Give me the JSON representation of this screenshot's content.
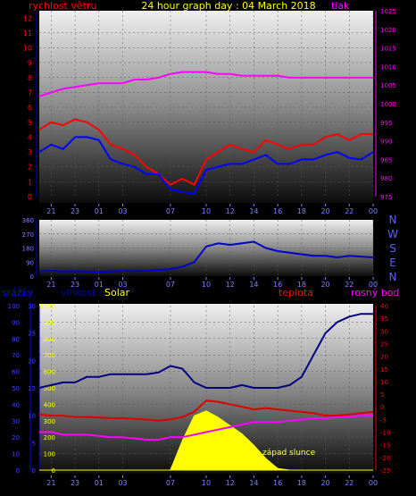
{
  "header": {
    "title": "24 hour graph day : 04 March 2018",
    "left_label": "rychlost větru",
    "right_label": "tlak"
  },
  "colors": {
    "wind": "#ff0000",
    "gust_avg": "#0000ff",
    "pressure": "#ff00ff",
    "direction": "#0000cc",
    "humidity": "#000080",
    "temperature": "#dd0000",
    "dewpoint": "#ff00ff",
    "solar": "#ffff00",
    "title": "#ffff00"
  },
  "x_ticks": [
    "21",
    "23",
    "01",
    "03",
    "07",
    "10",
    "12",
    "14",
    "16",
    "18",
    "20",
    "22",
    "00"
  ],
  "compass": [
    "N",
    "W",
    "S",
    "E",
    "N"
  ],
  "bottom_labels": {
    "rain": "srážky",
    "humidity": "vlhkost",
    "solar": "Solar",
    "temperature": "teplota",
    "dewpoint": "rosný bod",
    "sunset": "západ slunce"
  },
  "chart_data": [
    {
      "type": "line",
      "title": "24 hour graph day : 04 March 2018",
      "x": [
        "20",
        "21",
        "22",
        "23",
        "00",
        "01",
        "02",
        "03",
        "04",
        "05",
        "06",
        "07",
        "08",
        "09",
        "10",
        "11",
        "12",
        "13",
        "14",
        "15",
        "16",
        "17",
        "18",
        "19",
        "20",
        "21",
        "22",
        "23",
        "00"
      ],
      "ylabel_left": "rychlost větru",
      "ylabel_right": "tlak",
      "left_ticks": [
        "0",
        "1",
        "2",
        "3",
        "4",
        "5",
        "6",
        "7",
        "8",
        "9",
        "10",
        "11",
        "12"
      ],
      "right_ticks": [
        "975",
        "980",
        "985",
        "990",
        "995",
        "1000",
        "1005",
        "1010",
        "1015",
        "1020",
        "1025"
      ],
      "ylim_left": [
        0,
        12.5
      ],
      "ylim_right": [
        975,
        1025
      ],
      "series": [
        {
          "axis": "left",
          "values": [
            4.5,
            5,
            4.8,
            5.2,
            5,
            4.5,
            3.5,
            3.2,
            2.8,
            2,
            1.5,
            0.8,
            1.2,
            0.8,
            2.5,
            3,
            3.5,
            3.2,
            3,
            3.8,
            3.5,
            3.2,
            3.5,
            3.5,
            4,
            4.2,
            3.8,
            4.2,
            4.2
          ]
        },
        {
          "axis": "left",
          "values": [
            3,
            3.5,
            3.2,
            4,
            4,
            3.8,
            2.5,
            2.2,
            2,
            1.5,
            1.5,
            0.5,
            0.3,
            0.2,
            1.8,
            2,
            2.2,
            2.2,
            2.5,
            2.8,
            2.2,
            2.2,
            2.5,
            2.5,
            2.8,
            3,
            2.6,
            2.5,
            3
          ]
        },
        {
          "axis": "right",
          "values": [
            1002,
            1003,
            1004,
            1004.5,
            1005,
            1005.5,
            1005.5,
            1005.5,
            1006.5,
            1006.5,
            1007,
            1008,
            1008.5,
            1008.5,
            1008.5,
            1008,
            1008,
            1007.5,
            1007.5,
            1007.5,
            1007.5,
            1007,
            1007,
            1007,
            1007,
            1007,
            1007,
            1007,
            1007
          ]
        }
      ]
    },
    {
      "type": "line",
      "x": [
        "20",
        "21",
        "22",
        "23",
        "00",
        "01",
        "02",
        "03",
        "04",
        "05",
        "06",
        "07",
        "08",
        "09",
        "10",
        "11",
        "12",
        "13",
        "14",
        "15",
        "16",
        "17",
        "18",
        "19",
        "20",
        "21",
        "22",
        "23",
        "00"
      ],
      "left_ticks": [
        "0",
        "90",
        "180",
        "270",
        "360"
      ],
      "ylim": [
        0,
        360
      ],
      "series": [
        {
          "values": [
            30,
            35,
            30,
            32,
            30,
            25,
            30,
            35,
            32,
            35,
            40,
            45,
            60,
            90,
            190,
            210,
            200,
            210,
            220,
            180,
            160,
            150,
            140,
            130,
            130,
            120,
            130,
            125,
            120
          ]
        }
      ]
    },
    {
      "type": "line",
      "x": [
        "20",
        "21",
        "22",
        "23",
        "00",
        "01",
        "02",
        "03",
        "04",
        "05",
        "06",
        "07",
        "08",
        "09",
        "10",
        "11",
        "12",
        "13",
        "14",
        "15",
        "16",
        "17",
        "18",
        "19",
        "20",
        "21",
        "22",
        "23",
        "00"
      ],
      "ylabel_left": "srážky",
      "rain_ticks": [
        "0",
        "10",
        "20",
        "30",
        "40",
        "50",
        "60",
        "70",
        "80",
        "90",
        "100"
      ],
      "humidity_ticks": [
        "0",
        "5",
        "10",
        "15",
        "20",
        "25",
        "30"
      ],
      "solar_ticks": [
        "0",
        "100",
        "200",
        "300",
        "400",
        "500",
        "600",
        "700",
        "800",
        "900",
        "1000"
      ],
      "right_ticks": [
        "-25",
        "-20",
        "-15",
        "-10",
        "-5",
        "0",
        "5",
        "10",
        "15",
        "20",
        "25",
        "30",
        "35",
        "40"
      ],
      "ylim_temp": [
        -25,
        40
      ],
      "series": [
        {
          "values": [
            -3,
            -3.5,
            -3.5,
            -4,
            -4,
            -4.2,
            -4.5,
            -4.5,
            -4.8,
            -5,
            -5.5,
            -5,
            -4,
            -2,
            2.5,
            2,
            1,
            0,
            -1,
            -0.5,
            -1,
            -1.5,
            -2,
            -2.5,
            -3.5,
            -3.5,
            -3,
            -2.5,
            -2
          ]
        },
        {
          "values": [
            -10,
            -10,
            -11,
            -11,
            -11,
            -11.5,
            -12,
            -12,
            -12.5,
            -13,
            -13,
            -12,
            -12,
            -11,
            -10,
            -9,
            -8,
            -7,
            -6,
            -6,
            -6,
            -5.5,
            -5,
            -4.5,
            -4.5,
            -4,
            -4,
            -3.5,
            -3.5
          ]
        },
        {
          "values": [
            15,
            15.5,
            16,
            16,
            17,
            17,
            17.5,
            17.5,
            17.5,
            17.5,
            17.8,
            19,
            18.5,
            16,
            15,
            15,
            15,
            15.5,
            15,
            15,
            15,
            15.5,
            17,
            21,
            25,
            27,
            28,
            28.5,
            28.5
          ]
        },
        {
          "values": [
            0,
            0,
            0,
            0,
            0,
            0,
            0,
            0,
            0,
            0,
            0,
            0,
            180,
            330,
            360,
            320,
            270,
            220,
            150,
            70,
            10,
            0,
            0,
            0,
            0,
            0,
            0,
            0,
            0
          ]
        }
      ]
    }
  ]
}
